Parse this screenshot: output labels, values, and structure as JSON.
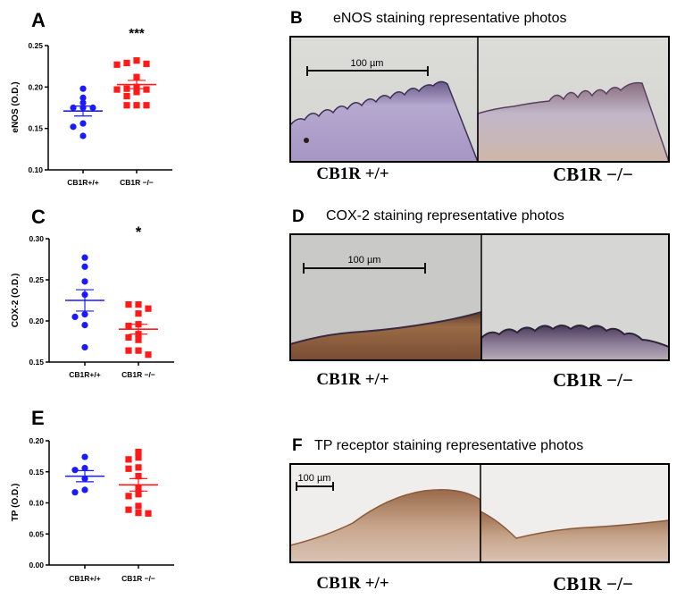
{
  "chart_data": [
    {
      "panel": "A",
      "type": "scatter",
      "ylabel": "eNOS (O.D.)",
      "categories": [
        "CB1R+/+",
        "CB1R −/−"
      ],
      "ylim": [
        0.1,
        0.25
      ],
      "yticks": [
        "0.10",
        "0.15",
        "0.20",
        "0.25"
      ],
      "significance": "***",
      "series": [
        {
          "values": [
            0.198,
            0.187,
            0.181,
            0.175,
            0.175,
            0.175,
            0.156,
            0.152,
            0.141
          ],
          "mean": 0.171,
          "sem": 0.006,
          "color": "#1a1aff",
          "marker": "circle"
        },
        {
          "values": [
            0.232,
            0.229,
            0.228,
            0.227,
            0.212,
            0.2,
            0.198,
            0.197,
            0.197,
            0.194,
            0.189,
            0.178,
            0.178,
            0.178
          ],
          "mean": 0.203,
          "sem": 0.005,
          "color": "#ff1a1a",
          "marker": "square"
        }
      ]
    },
    {
      "panel": "C",
      "type": "scatter",
      "ylabel": "COX-2 (O.D.)",
      "categories": [
        "CB1R+/+",
        "CB1R −/−"
      ],
      "ylim": [
        0.15,
        0.3
      ],
      "yticks": [
        "0.15",
        "0.20",
        "0.25",
        "0.30"
      ],
      "significance": "*",
      "series": [
        {
          "values": [
            0.277,
            0.266,
            0.248,
            0.232,
            0.208,
            0.205,
            0.195,
            0.168
          ],
          "mean": 0.225,
          "sem": 0.013,
          "color": "#1a1aff",
          "marker": "circle"
        },
        {
          "values": [
            0.22,
            0.22,
            0.215,
            0.209,
            0.196,
            0.194,
            0.184,
            0.18,
            0.177,
            0.164,
            0.164,
            0.159
          ],
          "mean": 0.19,
          "sem": 0.006,
          "color": "#ff1a1a",
          "marker": "square"
        }
      ]
    },
    {
      "panel": "E",
      "type": "scatter",
      "ylabel": "TP (O.D.)",
      "categories": [
        "CB1R+/+",
        "CB1R −/−"
      ],
      "ylim": [
        0.0,
        0.2
      ],
      "yticks": [
        "0.00",
        "0.05",
        "0.10",
        "0.15",
        "0.20"
      ],
      "significance": "",
      "series": [
        {
          "values": [
            0.174,
            0.156,
            0.153,
            0.139,
            0.121,
            0.117
          ],
          "mean": 0.143,
          "sem": 0.009,
          "color": "#1a1aff",
          "marker": "circle"
        },
        {
          "values": [
            0.182,
            0.173,
            0.17,
            0.157,
            0.155,
            0.143,
            0.123,
            0.114,
            0.111,
            0.095,
            0.089,
            0.084,
            0.083
          ],
          "mean": 0.129,
          "sem": 0.01,
          "color": "#ff1a1a",
          "marker": "square"
        }
      ]
    }
  ],
  "photos": [
    {
      "panel": "B",
      "title": "eNOS staining representative photos",
      "scale_bar": "100 µm",
      "left_label": "CB1R +/+",
      "right_label": "CB1R −/−"
    },
    {
      "panel": "D",
      "title": "COX-2 staining representative photos",
      "scale_bar": "100 µm",
      "left_label": "CB1R +/+",
      "right_label": "CB1R −/−"
    },
    {
      "panel": "F",
      "title": "TP receptor staining representative photos",
      "scale_bar": "100 µm",
      "left_label": "CB1R +/+",
      "right_label": "CB1R −/−"
    }
  ]
}
